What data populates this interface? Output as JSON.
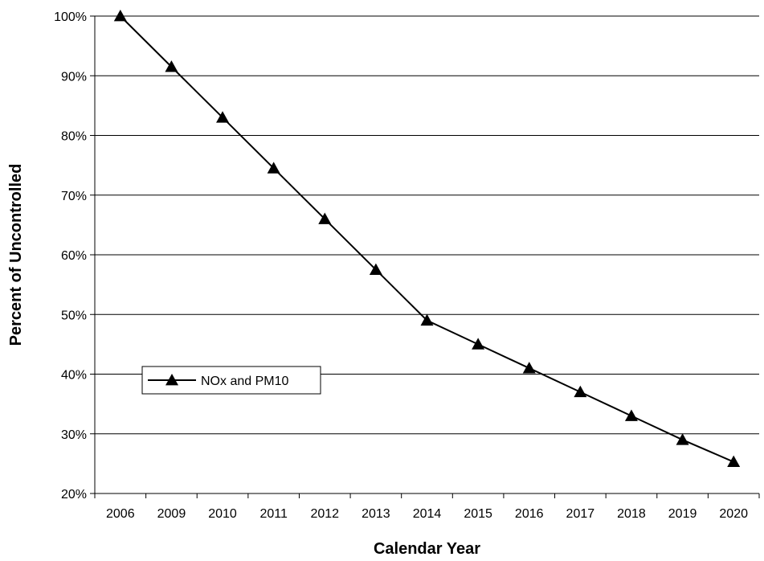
{
  "chart_data": {
    "type": "line",
    "title": "",
    "xlabel": "Calendar Year",
    "ylabel": "Percent of Uncontrolled",
    "categories": [
      "2006",
      "2009",
      "2010",
      "2011",
      "2012",
      "2013",
      "2014",
      "2015",
      "2016",
      "2017",
      "2018",
      "2019",
      "2020"
    ],
    "series": [
      {
        "name": "NOx and PM10",
        "marker": "triangle",
        "color": "#000000",
        "values": [
          100,
          91.5,
          83,
          74.5,
          66,
          57.5,
          49,
          45,
          41,
          37,
          33,
          29,
          25.3
        ]
      }
    ],
    "ylim": [
      20,
      100
    ],
    "yticks": [
      20,
      30,
      40,
      50,
      60,
      70,
      80,
      90,
      100
    ],
    "ytick_labels": [
      "20%",
      "30%",
      "40%",
      "50%",
      "60%",
      "70%",
      "80%",
      "90%",
      "100%"
    ],
    "grid": "horizontal",
    "legend_position": "left"
  }
}
